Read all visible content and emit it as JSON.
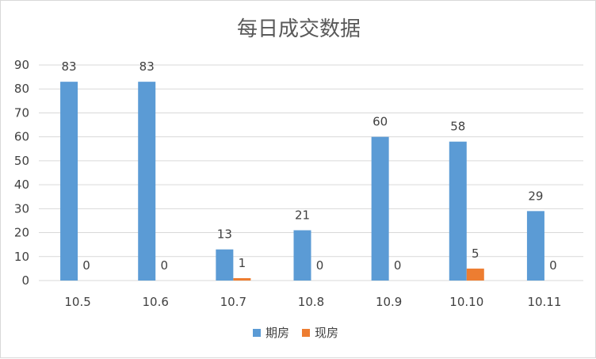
{
  "chart_data": {
    "type": "bar",
    "title": "每日成交数据",
    "xlabel": "",
    "ylabel": "",
    "categories": [
      "10.5",
      "10.6",
      "10.7",
      "10.8",
      "10.9",
      "10.10",
      "10.11"
    ],
    "series": [
      {
        "name": "期房",
        "values": [
          83,
          83,
          13,
          21,
          60,
          58,
          29
        ],
        "color": "#5b9bd5"
      },
      {
        "name": "现房",
        "values": [
          0,
          0,
          1,
          0,
          0,
          5,
          0
        ],
        "color": "#ed7d31"
      }
    ],
    "ylim": [
      0,
      90
    ],
    "yticks": [
      0,
      10,
      20,
      30,
      40,
      50,
      60,
      70,
      80,
      90
    ],
    "grid": true,
    "gridColor": "#d9d9d9",
    "legend": "bottom"
  }
}
